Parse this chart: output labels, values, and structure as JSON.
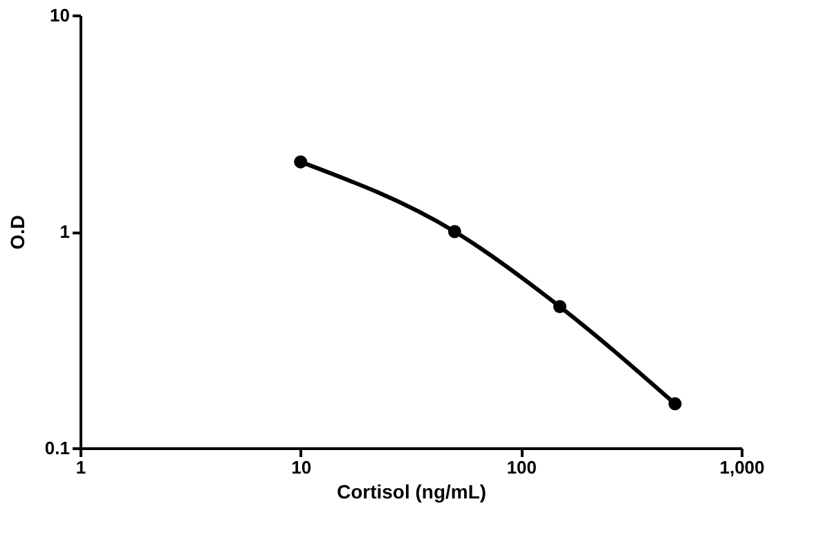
{
  "chart_data": {
    "type": "line",
    "xlabel": "Cortisol (ng/mL)",
    "ylabel": "O.D",
    "x": [
      10,
      50,
      150,
      500
    ],
    "series": [
      {
        "color": "#000000",
        "values": [
          2.1,
          1.0,
          0.45,
          0.16
        ]
      }
    ],
    "log": "xy",
    "xlim": [
      1,
      1000
    ],
    "ylim": [
      0.1,
      10
    ],
    "xticks": [
      1,
      10,
      100,
      {
        "value": 1000,
        "label": "1,000"
      }
    ],
    "yticks": [
      0.1,
      1,
      10
    ],
    "grid": false,
    "legend": false,
    "marker": "circle",
    "line_style": "solid"
  }
}
